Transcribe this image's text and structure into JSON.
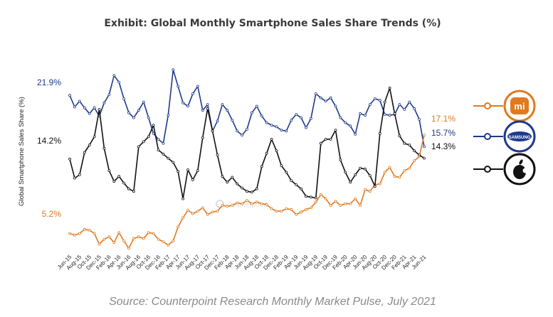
{
  "chart_data": {
    "type": "line",
    "title": "Exhibit: Global Monthly Smartphone Sales Share Trends (%)",
    "ylabel": "Global Smartphone Sales Share (%)",
    "source": "Source: Counterpoint Research Monthly Market Pulse, July 2021",
    "watermark": "Counterpoint",
    "ylim": [
      0,
      30
    ],
    "grid": false,
    "legend": "right",
    "x_ticks": [
      "Jun-15",
      "Aug-15",
      "Oct-15",
      "Dec-15",
      "Feb-16",
      "Apr-16",
      "Jun-16",
      "Aug-16",
      "Oct-16",
      "Dec-16",
      "Feb-17",
      "Apr-17",
      "Jun-17",
      "Aug-17",
      "Oct-17",
      "Dec-17",
      "Feb-18",
      "Apr-18",
      "Jun-18",
      "Aug-18",
      "Oct-18",
      "Dec-18",
      "Feb-19",
      "Apr-19",
      "Jun-19",
      "Aug-19",
      "Oct-19",
      "Dec-19",
      "Feb-20",
      "Apr-20",
      "Jun-20",
      "Aug-20",
      "Oct-20",
      "Dec-20",
      "Feb-21",
      "Apr-21",
      "Jun-21"
    ],
    "x": [
      "Jun-15",
      "Jul-15",
      "Aug-15",
      "Sep-15",
      "Oct-15",
      "Nov-15",
      "Dec-15",
      "Jan-16",
      "Feb-16",
      "Mar-16",
      "Apr-16",
      "May-16",
      "Jun-16",
      "Jul-16",
      "Aug-16",
      "Sep-16",
      "Oct-16",
      "Nov-16",
      "Dec-16",
      "Jan-17",
      "Feb-17",
      "Mar-17",
      "Apr-17",
      "May-17",
      "Jun-17",
      "Jul-17",
      "Aug-17",
      "Sep-17",
      "Oct-17",
      "Nov-17",
      "Dec-17",
      "Jan-18",
      "Feb-18",
      "Mar-18",
      "Apr-18",
      "May-18",
      "Jun-18",
      "Jul-18",
      "Aug-18",
      "Sep-18",
      "Oct-18",
      "Nov-18",
      "Dec-18",
      "Jan-19",
      "Feb-19",
      "Mar-19",
      "Apr-19",
      "May-19",
      "Jun-19",
      "Jul-19",
      "Aug-19",
      "Sep-19",
      "Oct-19",
      "Nov-19",
      "Dec-19",
      "Jan-20",
      "Feb-20",
      "Mar-20",
      "Apr-20",
      "May-20",
      "Jun-20",
      "Jul-20",
      "Aug-20",
      "Sep-20",
      "Oct-20",
      "Nov-20",
      "Dec-20",
      "Jan-21",
      "Feb-21",
      "Mar-21",
      "Apr-21",
      "May-21",
      "Jun-21"
    ],
    "series": [
      {
        "key": "samsung",
        "color": "#1f3a8a",
        "icon": "samsung-logo",
        "first_label": "21.9%",
        "last_label": "15.7%",
        "values": [
          21.9,
          20.5,
          21.2,
          20.4,
          19.7,
          20.4,
          19.4,
          21.0,
          22.0,
          24.3,
          23.5,
          21.5,
          19.8,
          19.2,
          20.1,
          21.1,
          19.2,
          17.3,
          16.6,
          16.1,
          19.5,
          25.0,
          23.0,
          21.0,
          20.6,
          22.1,
          23.0,
          20.1,
          20.8,
          17.6,
          18.8,
          20.8,
          20.1,
          18.9,
          17.6,
          17.1,
          17.8,
          19.8,
          20.6,
          19.4,
          18.6,
          18.3,
          18.1,
          17.7,
          17.6,
          18.9,
          19.6,
          19.2,
          18.0,
          19.1,
          22.1,
          21.6,
          21.2,
          21.6,
          20.6,
          19.2,
          18.6,
          18.2,
          17.2,
          19.7,
          19.5,
          20.8,
          21.5,
          21.3,
          19.6,
          19.5,
          19.6,
          20.8,
          20.2,
          21.1,
          20.3,
          19.0,
          15.7
        ]
      },
      {
        "key": "xiaomi",
        "color": "#e07a1f",
        "icon": "xiaomi-logo",
        "first_label": "5.2%",
        "last_label": "17.1%",
        "values": [
          5.2,
          5.0,
          5.2,
          5.7,
          5.6,
          5.2,
          3.9,
          4.5,
          4.8,
          4.1,
          5.3,
          4.3,
          3.4,
          4.6,
          4.8,
          4.6,
          5.3,
          5.2,
          4.5,
          4.2,
          3.8,
          4.3,
          6.0,
          7.1,
          8.0,
          7.6,
          7.9,
          8.3,
          7.5,
          7.8,
          7.9,
          8.6,
          8.5,
          8.6,
          8.9,
          8.8,
          9.2,
          8.8,
          9.0,
          8.8,
          8.7,
          8.2,
          7.9,
          7.9,
          8.2,
          8.1,
          7.5,
          7.8,
          8.1,
          8.3,
          9.0,
          9.9,
          9.4,
          8.6,
          9.1,
          8.6,
          8.8,
          8.8,
          9.4,
          8.6,
          10.5,
          10.3,
          11.1,
          11.2,
          12.6,
          13.2,
          12.1,
          12.0,
          12.8,
          13.1,
          14.0,
          14.5,
          17.1
        ]
      },
      {
        "key": "apple",
        "color": "#111111",
        "icon": "apple-logo",
        "first_label": "14.2%",
        "last_label": "14.3%",
        "values": [
          14.2,
          11.9,
          12.3,
          15.0,
          15.9,
          16.9,
          20.2,
          15.5,
          12.8,
          11.5,
          12.1,
          11.3,
          10.6,
          10.3,
          15.7,
          16.3,
          16.9,
          18.3,
          15.3,
          14.8,
          14.3,
          13.8,
          12.7,
          9.4,
          12.9,
          11.7,
          12.8,
          16.8,
          20.3,
          17.6,
          14.7,
          12.1,
          11.4,
          12.0,
          11.2,
          10.7,
          10.3,
          10.2,
          10.6,
          13.3,
          14.9,
          16.6,
          15.2,
          13.4,
          12.6,
          11.6,
          11.1,
          10.6,
          9.7,
          9.6,
          9.5,
          16.1,
          16.6,
          16.6,
          17.7,
          14.1,
          12.6,
          11.4,
          12.3,
          13.1,
          13.0,
          12.2,
          10.9,
          17.3,
          21.1,
          22.8,
          19.7,
          17.0,
          16.1,
          15.9,
          15.2,
          14.7,
          14.3
        ]
      }
    ]
  }
}
